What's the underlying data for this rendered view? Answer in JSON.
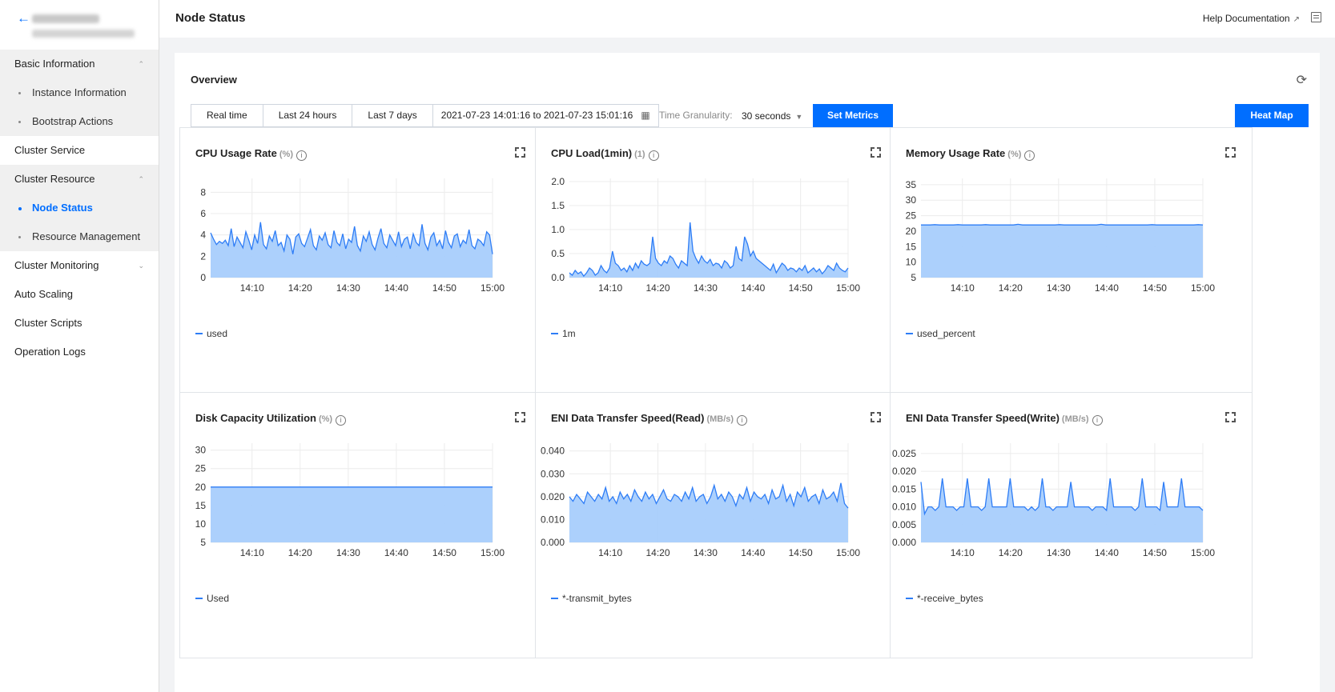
{
  "sidebar": {
    "groups": [
      {
        "label": "Basic Information",
        "children": [
          "Instance Information",
          "Bootstrap Actions"
        ]
      },
      {
        "label": "Cluster Service"
      },
      {
        "label": "Cluster Resource",
        "children": [
          "Node Status",
          "Resource Management"
        ]
      },
      {
        "label": "Cluster Monitoring"
      },
      {
        "label": "Auto Scaling"
      },
      {
        "label": "Cluster Scripts"
      },
      {
        "label": "Operation Logs"
      }
    ],
    "active": "Node Status"
  },
  "header": {
    "title": "Node Status",
    "help": "Help Documentation"
  },
  "toolbar": {
    "section_title": "Overview",
    "ranges": [
      "Real time",
      "Last 24 hours",
      "Last 7 days"
    ],
    "date_range": "2021-07-23 14:01:16 to 2021-07-23 15:01:16",
    "granularity_label": "Time Granularity:",
    "granularity_value": "30 seconds",
    "set_metrics": "Set Metrics",
    "heat_map": "Heat Map"
  },
  "colors": {
    "accent": "#006eff",
    "line": "#2e7df6",
    "fill": "#a8cdfc"
  },
  "chart_data": [
    {
      "type": "area",
      "title": "CPU Usage Rate",
      "unit": "(%)",
      "legend": "used",
      "x_ticks": [
        "14:10",
        "14:20",
        "14:30",
        "14:40",
        "14:50",
        "15:00"
      ],
      "y_ticks": [
        "0",
        "2",
        "4",
        "6",
        "8"
      ],
      "ylim": [
        0,
        9
      ],
      "values": [
        4.2,
        3.6,
        3.1,
        3.4,
        3.2,
        3.5,
        3.0,
        4.6,
        2.9,
        3.8,
        3.3,
        2.8,
        4.3,
        3.5,
        2.6,
        4.0,
        3.2,
        5.2,
        3.1,
        2.7,
        3.9,
        3.4,
        4.4,
        3.0,
        3.3,
        2.5,
        4.0,
        3.6,
        2.2,
        3.8,
        4.1,
        3.2,
        2.9,
        3.7,
        4.5,
        3.0,
        2.6,
        3.9,
        3.5,
        4.2,
        3.1,
        2.8,
        4.4,
        3.3,
        3.0,
        4.1,
        2.7,
        3.6,
        3.3,
        4.8,
        3.0,
        2.5,
        3.9,
        3.4,
        4.3,
        3.1,
        2.6,
        3.7,
        4.6,
        3.2,
        2.8,
        4.0,
        3.5,
        3.0,
        4.3,
        2.9,
        3.6,
        3.8,
        2.7,
        4.1,
        3.3,
        3.0,
        5.0,
        3.2,
        2.6,
        3.8,
        4.2,
        3.0,
        3.5,
        2.7,
        4.4,
        3.3,
        2.8,
        3.9,
        4.1,
        2.9,
        3.5,
        3.2,
        4.5,
        3.0,
        2.7,
        3.6,
        3.4,
        3.0,
        4.3,
        4.0,
        2.2
      ],
      "ylabel": "",
      "xlabel": ""
    },
    {
      "type": "area",
      "title": "CPU Load(1min)",
      "unit": "(1)",
      "legend": "1m",
      "x_ticks": [
        "14:10",
        "14:20",
        "14:30",
        "14:40",
        "14:50",
        "15:00"
      ],
      "y_ticks": [
        "0.0",
        "0.5",
        "1.0",
        "1.5",
        "2.0"
      ],
      "ylim": [
        0,
        2.0
      ],
      "values": [
        0.1,
        0.05,
        0.15,
        0.08,
        0.12,
        0.03,
        0.1,
        0.2,
        0.15,
        0.05,
        0.1,
        0.25,
        0.15,
        0.1,
        0.2,
        0.55,
        0.3,
        0.25,
        0.15,
        0.2,
        0.12,
        0.25,
        0.15,
        0.3,
        0.2,
        0.35,
        0.28,
        0.25,
        0.3,
        0.85,
        0.4,
        0.3,
        0.25,
        0.35,
        0.3,
        0.45,
        0.4,
        0.28,
        0.2,
        0.35,
        0.3,
        0.25,
        1.15,
        0.55,
        0.4,
        0.3,
        0.45,
        0.35,
        0.3,
        0.38,
        0.25,
        0.3,
        0.28,
        0.2,
        0.35,
        0.3,
        0.2,
        0.25,
        0.65,
        0.4,
        0.35,
        0.85,
        0.7,
        0.45,
        0.55,
        0.4,
        0.35,
        0.3,
        0.25,
        0.2,
        0.15,
        0.28,
        0.1,
        0.2,
        0.3,
        0.25,
        0.15,
        0.2,
        0.18,
        0.12,
        0.2,
        0.15,
        0.25,
        0.1,
        0.15,
        0.2,
        0.12,
        0.18,
        0.08,
        0.15,
        0.25,
        0.2,
        0.15,
        0.3,
        0.2,
        0.15,
        0.12,
        0.2
      ],
      "ylabel": "",
      "xlabel": ""
    },
    {
      "type": "area",
      "title": "Memory Usage Rate",
      "unit": "(%)",
      "legend": "used_percent",
      "x_ticks": [
        "14:10",
        "14:20",
        "14:30",
        "14:40",
        "14:50",
        "15:00"
      ],
      "y_ticks": [
        "5",
        "10",
        "15",
        "20",
        "25",
        "30",
        "35"
      ],
      "ylim": [
        5,
        36
      ],
      "values": [
        22.0,
        22.0,
        22.0,
        22.1,
        22.0,
        22.0,
        22.0,
        22.0,
        22.1,
        22.0,
        22.0,
        22.0,
        22.0,
        22.0,
        22.1,
        22.0,
        22.0,
        22.0,
        22.0,
        22.0,
        22.0,
        22.2,
        22.0,
        22.0,
        22.0,
        22.0,
        22.0,
        22.0,
        22.0,
        22.0,
        22.1,
        22.0,
        22.0,
        22.0,
        22.0,
        22.0,
        22.0,
        22.0,
        22.0,
        22.2,
        22.0,
        22.0,
        22.0,
        22.0,
        22.0,
        22.0,
        22.0,
        22.0,
        22.0,
        22.0,
        22.1,
        22.0,
        22.0,
        22.0,
        22.0,
        22.0,
        22.0,
        22.0,
        22.0,
        22.0,
        22.1,
        22.0
      ],
      "ylabel": "",
      "xlabel": ""
    },
    {
      "type": "area",
      "title": "Disk Capacity Utilization",
      "unit": "(%)",
      "legend": "Used",
      "x_ticks": [
        "14:10",
        "14:20",
        "14:30",
        "14:40",
        "14:50",
        "15:00"
      ],
      "y_ticks": [
        "5",
        "10",
        "15",
        "20",
        "25",
        "30"
      ],
      "ylim": [
        5,
        31
      ],
      "values": [
        20.0,
        20.0,
        20.0,
        20.0,
        20.0,
        20.0,
        20.0,
        20.0,
        20.0,
        20.0,
        20.0,
        20.0,
        20.0,
        20.0,
        20.0,
        20.0,
        20.0,
        20.0,
        20.0,
        20.0,
        20.0,
        20.0,
        20.0,
        20.0
      ],
      "ylabel": "",
      "xlabel": ""
    },
    {
      "type": "area",
      "title": "ENI Data Transfer Speed(Read)",
      "unit": "(MB/s)",
      "legend": "*-transmit_bytes",
      "x_ticks": [
        "14:10",
        "14:20",
        "14:30",
        "14:40",
        "14:50",
        "15:00"
      ],
      "y_ticks": [
        "0.000",
        "0.010",
        "0.020",
        "0.030",
        "0.040"
      ],
      "ylim": [
        0,
        0.042
      ],
      "values": [
        0.02,
        0.018,
        0.021,
        0.019,
        0.017,
        0.022,
        0.02,
        0.018,
        0.021,
        0.019,
        0.024,
        0.018,
        0.02,
        0.017,
        0.022,
        0.019,
        0.021,
        0.018,
        0.023,
        0.02,
        0.018,
        0.022,
        0.019,
        0.021,
        0.017,
        0.02,
        0.023,
        0.019,
        0.018,
        0.021,
        0.02,
        0.018,
        0.022,
        0.019,
        0.024,
        0.018,
        0.02,
        0.021,
        0.017,
        0.02,
        0.025,
        0.019,
        0.021,
        0.018,
        0.022,
        0.02,
        0.016,
        0.021,
        0.019,
        0.024,
        0.018,
        0.022,
        0.02,
        0.019,
        0.021,
        0.017,
        0.023,
        0.019,
        0.02,
        0.025,
        0.018,
        0.021,
        0.016,
        0.022,
        0.02,
        0.024,
        0.018,
        0.02,
        0.021,
        0.017,
        0.023,
        0.019,
        0.02,
        0.022,
        0.018,
        0.026,
        0.017,
        0.015
      ],
      "ylabel": "",
      "xlabel": ""
    },
    {
      "type": "area",
      "title": "ENI Data Transfer Speed(Write)",
      "unit": "(MB/s)",
      "legend": "*-receive_bytes",
      "x_ticks": [
        "14:10",
        "14:20",
        "14:30",
        "14:40",
        "14:50",
        "15:00"
      ],
      "y_ticks": [
        "0.000",
        "0.005",
        "0.010",
        "0.015",
        "0.020",
        "0.025"
      ],
      "ylim": [
        0,
        0.027
      ],
      "values": [
        0.017,
        0.008,
        0.01,
        0.01,
        0.009,
        0.01,
        0.018,
        0.01,
        0.01,
        0.01,
        0.009,
        0.01,
        0.01,
        0.018,
        0.01,
        0.01,
        0.01,
        0.009,
        0.01,
        0.018,
        0.01,
        0.01,
        0.01,
        0.01,
        0.01,
        0.018,
        0.01,
        0.01,
        0.01,
        0.01,
        0.009,
        0.01,
        0.009,
        0.01,
        0.018,
        0.01,
        0.01,
        0.009,
        0.01,
        0.01,
        0.01,
        0.01,
        0.017,
        0.01,
        0.01,
        0.01,
        0.01,
        0.01,
        0.009,
        0.01,
        0.01,
        0.01,
        0.009,
        0.018,
        0.01,
        0.01,
        0.01,
        0.01,
        0.01,
        0.01,
        0.009,
        0.01,
        0.018,
        0.01,
        0.01,
        0.01,
        0.01,
        0.009,
        0.017,
        0.01,
        0.01,
        0.01,
        0.01,
        0.018,
        0.01,
        0.01,
        0.01,
        0.01,
        0.01,
        0.009
      ],
      "ylabel": "",
      "xlabel": ""
    }
  ]
}
